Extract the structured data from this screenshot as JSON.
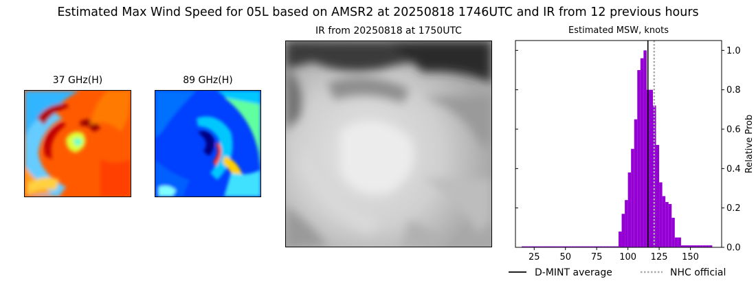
{
  "figure": {
    "title": "Estimated Max Wind Speed for 05L based on AMSR2 at 20250818 1746UTC and IR from 12 previous hours"
  },
  "panels": {
    "ghz37": {
      "title": "37 GHz(H)",
      "colormap": "jet"
    },
    "ghz89": {
      "title": "89 GHz(H)",
      "colormap": "jet"
    },
    "ir": {
      "title": "IR from 20250818 at 1750UTC",
      "colormap": "gray"
    }
  },
  "chart_data": {
    "type": "bar",
    "title": "Estimated MSW, knots",
    "xlabel": "",
    "ylabel": "Relative Prob",
    "xlim": [
      10,
      175
    ],
    "ylim": [
      0,
      1.05
    ],
    "xticks": [
      25,
      50,
      75,
      100,
      125,
      150
    ],
    "yticks": [
      0.0,
      0.2,
      0.4,
      0.6,
      0.8,
      1.0
    ],
    "ytick_labels": [
      "0.0",
      "0.2",
      "0.4",
      "0.6",
      "0.8",
      "1.0"
    ],
    "bin_width": 2.5,
    "bins": [
      {
        "x": 15,
        "y": 0.005
      },
      {
        "x": 17.5,
        "y": 0.005
      },
      {
        "x": 20,
        "y": 0.005
      },
      {
        "x": 22.5,
        "y": 0.005
      },
      {
        "x": 25,
        "y": 0.005
      },
      {
        "x": 27.5,
        "y": 0.005
      },
      {
        "x": 30,
        "y": 0.005
      },
      {
        "x": 32.5,
        "y": 0.005
      },
      {
        "x": 35,
        "y": 0.005
      },
      {
        "x": 37.5,
        "y": 0.005
      },
      {
        "x": 40,
        "y": 0.005
      },
      {
        "x": 42.5,
        "y": 0.005
      },
      {
        "x": 45,
        "y": 0.005
      },
      {
        "x": 47.5,
        "y": 0.005
      },
      {
        "x": 50,
        "y": 0.005
      },
      {
        "x": 52.5,
        "y": 0.005
      },
      {
        "x": 55,
        "y": 0.005
      },
      {
        "x": 57.5,
        "y": 0.005
      },
      {
        "x": 60,
        "y": 0.005
      },
      {
        "x": 62.5,
        "y": 0.005
      },
      {
        "x": 65,
        "y": 0.005
      },
      {
        "x": 67.5,
        "y": 0.005
      },
      {
        "x": 70,
        "y": 0.005
      },
      {
        "x": 72.5,
        "y": 0.005
      },
      {
        "x": 75,
        "y": 0.005
      },
      {
        "x": 77.5,
        "y": 0.005
      },
      {
        "x": 80,
        "y": 0.005
      },
      {
        "x": 82.5,
        "y": 0.005
      },
      {
        "x": 85,
        "y": 0.005
      },
      {
        "x": 87.5,
        "y": 0.005
      },
      {
        "x": 90,
        "y": 0.005
      },
      {
        "x": 92.5,
        "y": 0.08
      },
      {
        "x": 95,
        "y": 0.17
      },
      {
        "x": 97.5,
        "y": 0.24
      },
      {
        "x": 100,
        "y": 0.38
      },
      {
        "x": 102.5,
        "y": 0.5
      },
      {
        "x": 105,
        "y": 0.65
      },
      {
        "x": 107.5,
        "y": 0.9
      },
      {
        "x": 110,
        "y": 0.96
      },
      {
        "x": 112.5,
        "y": 1.0
      },
      {
        "x": 115,
        "y": 0.8
      },
      {
        "x": 117.5,
        "y": 0.8
      },
      {
        "x": 120,
        "y": 0.72
      },
      {
        "x": 122.5,
        "y": 0.52
      },
      {
        "x": 125,
        "y": 0.33
      },
      {
        "x": 127.5,
        "y": 0.26
      },
      {
        "x": 130,
        "y": 0.23
      },
      {
        "x": 132.5,
        "y": 0.22
      },
      {
        "x": 135,
        "y": 0.15
      },
      {
        "x": 137.5,
        "y": 0.05
      },
      {
        "x": 140,
        "y": 0.05
      },
      {
        "x": 142.5,
        "y": 0.01
      },
      {
        "x": 145,
        "y": 0.01
      },
      {
        "x": 147.5,
        "y": 0.01
      },
      {
        "x": 150,
        "y": 0.01
      },
      {
        "x": 152.5,
        "y": 0.01
      },
      {
        "x": 155,
        "y": 0.01
      },
      {
        "x": 157.5,
        "y": 0.01
      },
      {
        "x": 160,
        "y": 0.01
      },
      {
        "x": 162.5,
        "y": 0.01
      },
      {
        "x": 165,
        "y": 0.01
      }
    ],
    "bar_color": "#9400d3",
    "lines": [
      {
        "name": "D-MINT average",
        "x": 116,
        "color": "#000000",
        "style": "solid"
      },
      {
        "name": "NHC official",
        "x": 121,
        "color": "#aaaaaa",
        "style": "dotted"
      }
    ],
    "legend_position": "bottom"
  }
}
